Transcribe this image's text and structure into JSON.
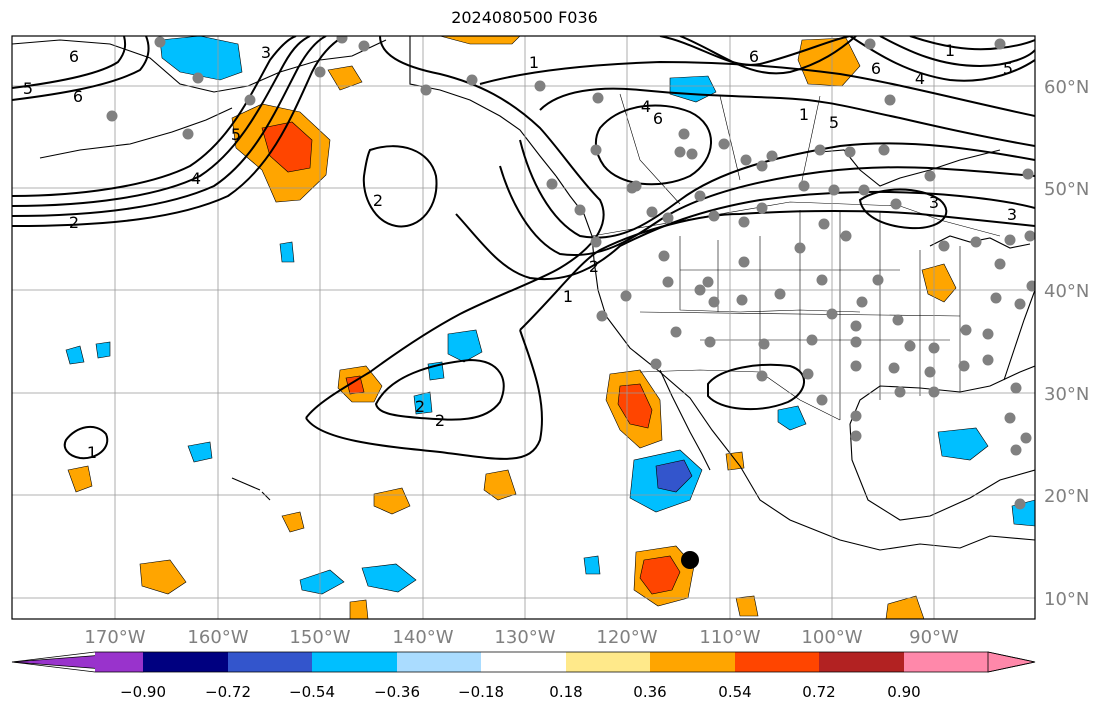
{
  "title": "2024080500 F036",
  "map": {
    "lon_labels": [
      "170°W",
      "160°W",
      "150°W",
      "140°W",
      "130°W",
      "120°W",
      "110°W",
      "100°W",
      "90°W"
    ],
    "lat_labels": [
      "60°N",
      "50°N",
      "40°N",
      "30°N",
      "20°N",
      "10°N"
    ],
    "contour_labels": [
      "5",
      "6",
      "3",
      "1",
      "4",
      "6",
      "5",
      "2",
      "2",
      "1",
      "2",
      "3",
      "2",
      "1",
      "1",
      "2",
      "4",
      "6",
      "5",
      "6",
      "5",
      "3",
      "6",
      "4",
      "1"
    ],
    "marker_colors": {
      "stations": "#808080",
      "highlight": "#000000"
    }
  },
  "colorbar": {
    "colors": [
      "#9933cc",
      "#000080",
      "#3355cc",
      "#00bfff",
      "#aadcff",
      "#ffffff",
      "#ffe98a",
      "#ffa500",
      "#ff4500",
      "#b22222",
      "#ff88aa"
    ],
    "tick_labels": [
      "−0.90",
      "−0.72",
      "−0.54",
      "−0.36",
      "−0.18",
      "0.18",
      "0.36",
      "0.54",
      "0.72",
      "0.90"
    ]
  }
}
